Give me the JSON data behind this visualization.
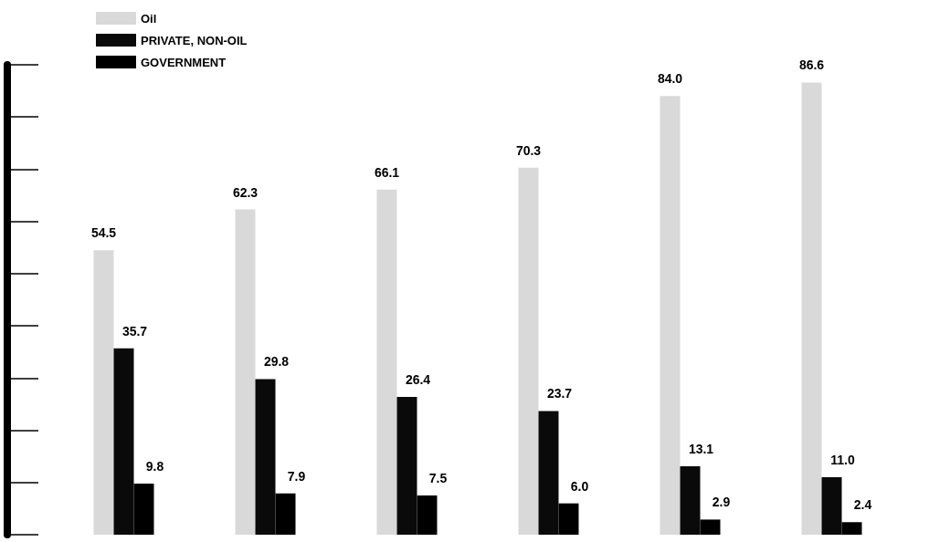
{
  "chart_data": {
    "type": "bar",
    "categories": [
      null,
      null,
      null,
      null,
      null,
      null
    ],
    "series": [
      {
        "name": "Oil",
        "color": "#d9d9d9",
        "values": [
          54.5,
          62.3,
          66.1,
          70.3,
          84.0,
          86.6
        ],
        "value_labels": [
          "54.5",
          "62.3",
          "66.1",
          "70.3",
          "84.0",
          "86.6"
        ]
      },
      {
        "name": "PRIVATE, NON-OIL",
        "color": "#0a0a0a",
        "values": [
          35.7,
          29.8,
          26.4,
          23.7,
          13.1,
          11.0
        ],
        "value_labels": [
          "35.7",
          "29.8",
          "26.4",
          "23.7",
          "13.1",
          "11.0"
        ]
      },
      {
        "name": "GOVERNMENT",
        "color": "#000000",
        "values": [
          9.8,
          7.9,
          7.5,
          6.0,
          2.9,
          2.4
        ],
        "value_labels": [
          "9.8",
          "7.9",
          "7.5",
          "6.0",
          "2.9",
          "2.4"
        ]
      }
    ],
    "legend": "top left",
    "grid": false
  }
}
